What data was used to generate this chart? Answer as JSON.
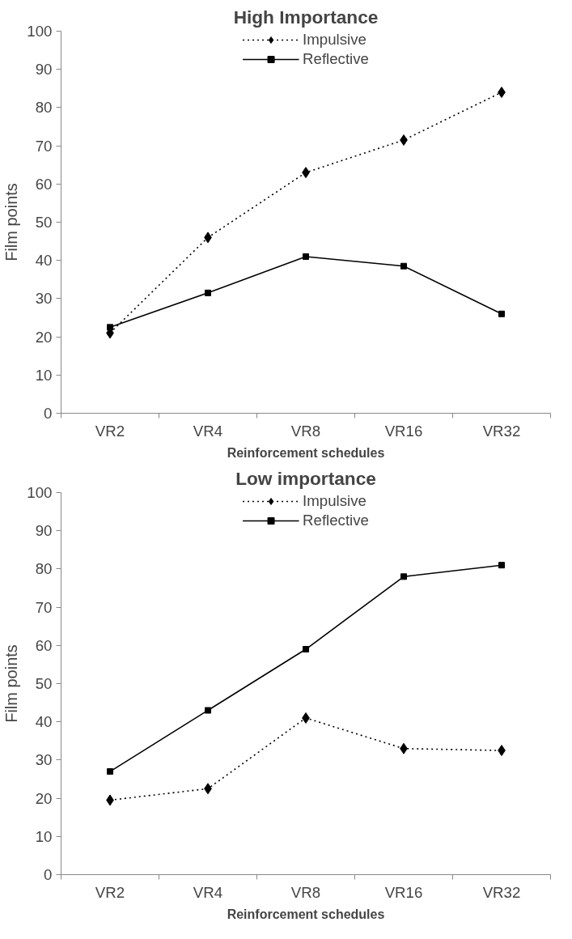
{
  "chart_data": [
    {
      "type": "line",
      "title": "High Importance",
      "xlabel": "Reinforcement schedules",
      "ylabel": "Film points",
      "categories": [
        "VR2",
        "VR4",
        "VR8",
        "VR16",
        "VR32"
      ],
      "ylim": [
        0,
        100
      ],
      "yticks": [
        0,
        10,
        20,
        30,
        40,
        50,
        60,
        70,
        80,
        90,
        100
      ],
      "grid": false,
      "legend": "top",
      "series": [
        {
          "name": "Impulsive",
          "color": "#000000",
          "marker": "diamond",
          "line_style": "dotted",
          "values": [
            21,
            46,
            63,
            71.5,
            84
          ]
        },
        {
          "name": "Reflective",
          "color": "#000000",
          "marker": "square",
          "line_style": "solid",
          "values": [
            22.5,
            31.5,
            41,
            38.5,
            26
          ]
        }
      ]
    },
    {
      "type": "line",
      "title": "Low importance",
      "xlabel": "Reinforcement schedules",
      "ylabel": "Film points",
      "categories": [
        "VR2",
        "VR4",
        "VR8",
        "VR16",
        "VR32"
      ],
      "ylim": [
        0,
        100
      ],
      "yticks": [
        0,
        10,
        20,
        30,
        40,
        50,
        60,
        70,
        80,
        90,
        100
      ],
      "grid": false,
      "legend": "top",
      "series": [
        {
          "name": "Impulsive",
          "color": "#000000",
          "marker": "diamond",
          "line_style": "dotted",
          "values": [
            19.5,
            22.5,
            41,
            33,
            32.5
          ]
        },
        {
          "name": "Reflective",
          "color": "#000000",
          "marker": "square",
          "line_style": "solid",
          "values": [
            27,
            43,
            59,
            78,
            81
          ]
        }
      ]
    }
  ]
}
